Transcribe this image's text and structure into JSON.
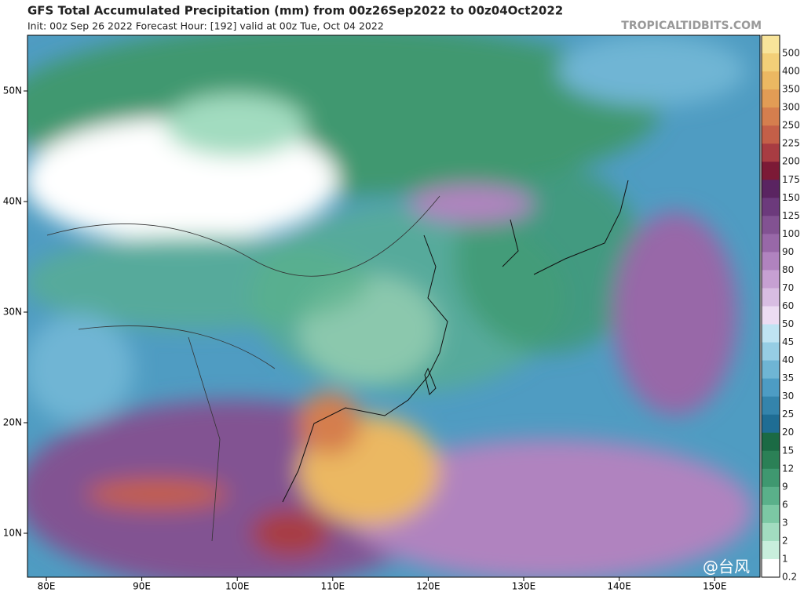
{
  "header": {
    "title": "GFS Total Accumulated Precipitation (mm) from 00z26Sep2022 to 00z04Oct2022",
    "subtitle": "Init: 00z Sep 26 2022   Forecast Hour: [192]   valid at 00z Tue, Oct 04 2022",
    "source": "TROPICALTIDBITS.COM"
  },
  "map": {
    "lat_labels": [
      "50N",
      "40N",
      "30N",
      "20N",
      "10N"
    ],
    "lon_labels": [
      "80E",
      "90E",
      "100E",
      "110E",
      "120E",
      "130E",
      "140E",
      "150E"
    ]
  },
  "colorbar": {
    "levels": [
      {
        "label": "500",
        "color": "#f8e49a"
      },
      {
        "label": "400",
        "color": "#f2cf78"
      },
      {
        "label": "350",
        "color": "#ebb862"
      },
      {
        "label": "300",
        "color": "#e29c55"
      },
      {
        "label": "250",
        "color": "#d57e4e"
      },
      {
        "label": "225",
        "color": "#c45f48"
      },
      {
        "label": "200",
        "color": "#a83c42"
      },
      {
        "label": "175",
        "color": "#7c1a36"
      },
      {
        "label": "150",
        "color": "#5a2461"
      },
      {
        "label": "125",
        "color": "#6c3a7c"
      },
      {
        "label": "100",
        "color": "#825292"
      },
      {
        "label": "90",
        "color": "#9868a8"
      },
      {
        "label": "80",
        "color": "#b083bf"
      },
      {
        "label": "70",
        "color": "#c6a0d2"
      },
      {
        "label": "60",
        "color": "#d8bde2"
      },
      {
        "label": "50",
        "color": "#ecdcf2"
      },
      {
        "label": "45",
        "color": "#bfe3f2"
      },
      {
        "label": "40",
        "color": "#96cde4"
      },
      {
        "label": "35",
        "color": "#6fb5d4"
      },
      {
        "label": "30",
        "color": "#4d9cc4"
      },
      {
        "label": "25",
        "color": "#3484ac"
      },
      {
        "label": "20",
        "color": "#1f6d94"
      },
      {
        "label": "15",
        "color": "#1b6a44"
      },
      {
        "label": "12",
        "color": "#2b8056"
      },
      {
        "label": "9",
        "color": "#3f9870"
      },
      {
        "label": "6",
        "color": "#5ab08a"
      },
      {
        "label": "3",
        "color": "#7cc8a4"
      },
      {
        "label": "2",
        "color": "#a2dcc0"
      },
      {
        "label": "1",
        "color": "#c8eedc"
      },
      {
        "label": "0.2",
        "color": "#ffffff"
      }
    ]
  },
  "watermark": "@台风"
}
